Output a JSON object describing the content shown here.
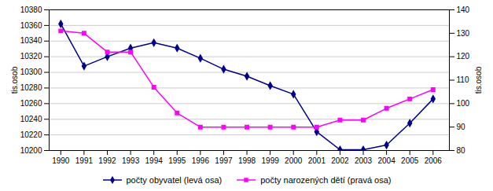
{
  "chart_data": {
    "type": "line",
    "x": [
      1990,
      1991,
      1992,
      1993,
      1994,
      1995,
      1996,
      1997,
      1998,
      1999,
      2000,
      2001,
      2002,
      2003,
      2004,
      2005,
      2006
    ],
    "series": [
      {
        "name": "počty obyvatel (levá osa)",
        "color": "#00008B",
        "marker": "diamond",
        "axis": "y",
        "values": [
          10362,
          10308,
          10320,
          10331,
          10338,
          10331,
          10318,
          10304,
          10295,
          10283,
          10272,
          10224,
          10201,
          10201,
          10207,
          10235,
          10266
        ]
      },
      {
        "name": "počty narozených dětí (pravá osa)",
        "color": "#FF00FF",
        "marker": "square",
        "axis": "y2",
        "values": [
          131,
          130,
          122,
          122,
          107,
          96,
          90,
          90,
          90,
          90,
          90,
          90,
          93,
          93,
          98,
          102,
          106
        ]
      }
    ],
    "ylabel": "tis.osob",
    "y2label": "tis.osob",
    "xlim": [
      1989.5,
      2006.7
    ],
    "xticks": [
      1990,
      1991,
      1992,
      1993,
      1994,
      1995,
      1996,
      1997,
      1998,
      1999,
      2000,
      2001,
      2002,
      2003,
      2004,
      2005,
      2006
    ],
    "ylim": [
      10200,
      10380
    ],
    "yticks": [
      10200,
      10220,
      10240,
      10260,
      10280,
      10300,
      10320,
      10340,
      10360,
      10380
    ],
    "y2lim": [
      80,
      140
    ],
    "y2ticks": [
      80,
      90,
      100,
      110,
      120,
      130,
      140
    ],
    "grid": true,
    "legend": "bottom"
  }
}
